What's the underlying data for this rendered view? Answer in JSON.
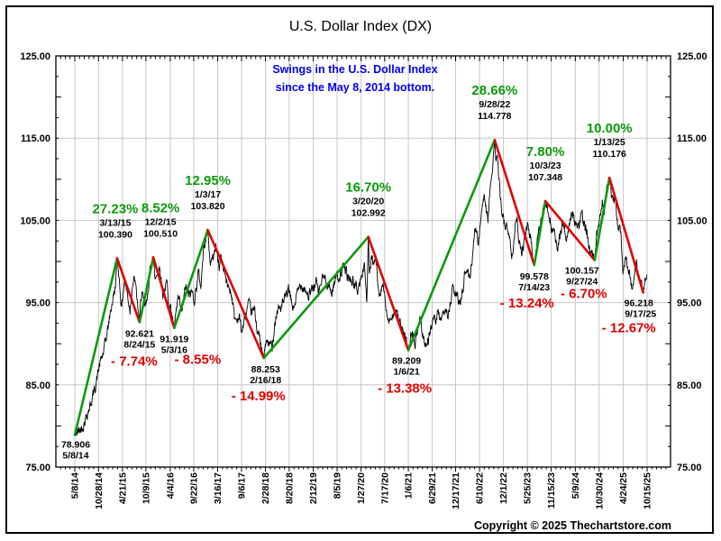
{
  "title": "U.S. Dollar Index (DX)",
  "annotation": {
    "lines": [
      "Swings in the U.S. Dollar Index",
      "since the May 8, 2014 bottom."
    ],
    "color": "#0000EE"
  },
  "copyright": "Copyright © 2025 Thechartstore.com",
  "colors": {
    "up_green": "#0A9A0A",
    "down_red": "#E00000",
    "annotation_blue": "#0000EE",
    "grid_gray": "#C6C6C6",
    "price_black": "#000000"
  },
  "y_axis": {
    "min": 75,
    "max": 125,
    "tick_step": 10,
    "labels": [
      "125.00",
      "115.00",
      "105.00",
      "95.00",
      "85.00",
      "75.00"
    ],
    "gridline_values": [
      115,
      105,
      95,
      85
    ]
  },
  "x_axis": {
    "labels": [
      "5/8/14",
      "10/28/14",
      "4/21/15",
      "10/9/15",
      "4/4/16",
      "9/22/16",
      "3/16/17",
      "9/6/17",
      "2/28/18",
      "8/20/18",
      "2/12/19",
      "8/5/19",
      "1/27/20",
      "7/17/20",
      "1/6/21",
      "6/29/21",
      "12/17/21",
      "6/10/22",
      "12/1/22",
      "5/25/23",
      "11/15/23",
      "5/9/24",
      "10/30/24",
      "4/24/25",
      "10/15/25"
    ],
    "label_days": [
      0,
      173,
      348,
      519,
      697,
      868,
      1043,
      1217,
      1392,
      1565,
      1741,
      1915,
      2090,
      2262,
      2435,
      2609,
      2780,
      2955,
      3129,
      3304,
      3478,
      3654,
      3828,
      4004,
      4178
    ]
  },
  "chart_data": {
    "type": "line",
    "series_name": "U.S. Dollar Index (DX)",
    "ylim": [
      75,
      125
    ],
    "grid": true,
    "swings": [
      {
        "day": 0,
        "date": "5/8/14",
        "value": 78.906,
        "value_str": "78.906",
        "type": "low",
        "pct": null
      },
      {
        "day": 309,
        "date": "3/13/15",
        "value": 100.39,
        "value_str": "100.390",
        "type": "high",
        "pct": "27.23%"
      },
      {
        "day": 473,
        "date": "8/24/15",
        "value": 92.621,
        "value_str": "92.621",
        "type": "low",
        "pct": "- 7.74%"
      },
      {
        "day": 573,
        "date": "12/2/15",
        "value": 100.51,
        "value_str": "100.510",
        "type": "high",
        "pct": "8.52%"
      },
      {
        "day": 726,
        "date": "5/3/16",
        "value": 91.919,
        "value_str": "91.919",
        "type": "low",
        "pct": "- 8.55%"
      },
      {
        "day": 971,
        "date": "1/3/17",
        "value": 103.82,
        "value_str": "103.820",
        "type": "high",
        "pct": "12.95%"
      },
      {
        "day": 1380,
        "date": "2/16/18",
        "value": 88.253,
        "value_str": "88.253",
        "type": "low",
        "pct": "- 14.99%"
      },
      {
        "day": 2143,
        "date": "3/20/20",
        "value": 102.992,
        "value_str": "102.992",
        "type": "high",
        "pct": "16.70%"
      },
      {
        "day": 2435,
        "date": "1/6/21",
        "value": 89.209,
        "value_str": "89.209",
        "type": "low",
        "pct": "- 13.38%"
      },
      {
        "day": 3065,
        "date": "9/28/22",
        "value": 114.778,
        "value_str": "114.778",
        "type": "high",
        "pct": "28.66%"
      },
      {
        "day": 3354,
        "date": "7/14/23",
        "value": 99.578,
        "value_str": "99.578",
        "type": "low",
        "pct": "- 13.24%"
      },
      {
        "day": 3435,
        "date": "10/3/23",
        "value": 107.348,
        "value_str": "107.348",
        "type": "high",
        "pct": "7.80%"
      },
      {
        "day": 3795,
        "date": "9/27/24",
        "value": 100.157,
        "value_str": "100.157",
        "type": "low",
        "pct": "- 6.70%"
      },
      {
        "day": 3903,
        "date": "1/13/25",
        "value": 110.176,
        "value_str": "110.176",
        "type": "high",
        "pct": "10.00%"
      },
      {
        "day": 4150,
        "date": "9/17/25",
        "value": 96.218,
        "value_str": "96.218",
        "type": "low",
        "pct": "- 12.67%"
      }
    ],
    "price_anchors": [
      [
        0,
        78.906
      ],
      [
        54,
        79.8
      ],
      [
        116,
        82.7
      ],
      [
        150,
        84.8
      ],
      [
        179,
        87.3
      ],
      [
        210,
        89.0
      ],
      [
        242,
        91.9
      ],
      [
        270,
        94.8
      ],
      [
        295,
        96.8
      ],
      [
        309,
        100.39
      ],
      [
        320,
        98.7
      ],
      [
        342,
        94.3
      ],
      [
        362,
        97.8
      ],
      [
        382,
        96.2
      ],
      [
        403,
        94.1
      ],
      [
        420,
        97.2
      ],
      [
        438,
        97.8
      ],
      [
        455,
        95.3
      ],
      [
        473,
        92.621
      ],
      [
        481,
        95.5
      ],
      [
        490,
        96.2
      ],
      [
        505,
        94.5
      ],
      [
        525,
        94.8
      ],
      [
        545,
        98.4
      ],
      [
        566,
        99.9
      ],
      [
        573,
        100.51
      ],
      [
        586,
        97.7
      ],
      [
        605,
        98.9
      ],
      [
        622,
        99.3
      ],
      [
        643,
        95.9
      ],
      [
        660,
        96.8
      ],
      [
        672,
        97.4
      ],
      [
        690,
        94.7
      ],
      [
        705,
        94.0
      ],
      [
        726,
        91.919
      ],
      [
        754,
        95.6
      ],
      [
        781,
        93.6
      ],
      [
        809,
        97.0
      ],
      [
        830,
        95.8
      ],
      [
        855,
        96.3
      ],
      [
        876,
        95.4
      ],
      [
        901,
        98.7
      ],
      [
        920,
        97.0
      ],
      [
        940,
        101.5
      ],
      [
        957,
        103.2
      ],
      [
        971,
        103.82
      ],
      [
        985,
        100.3
      ],
      [
        1001,
        99.9
      ],
      [
        1015,
        100.9
      ],
      [
        1029,
        102.1
      ],
      [
        1044,
        100.2
      ],
      [
        1054,
        99.4
      ],
      [
        1068,
        100.7
      ],
      [
        1090,
        99.0
      ],
      [
        1110,
        97.2
      ],
      [
        1130,
        96.8
      ],
      [
        1149,
        95.7
      ],
      [
        1165,
        93.2
      ],
      [
        1181,
        92.9
      ],
      [
        1200,
        93.4
      ],
      [
        1219,
        91.4
      ],
      [
        1240,
        93.0
      ],
      [
        1267,
        94.8
      ],
      [
        1287,
        93.9
      ],
      [
        1314,
        94.0
      ],
      [
        1330,
        92.0
      ],
      [
        1348,
        90.7
      ],
      [
        1362,
        89.2
      ],
      [
        1380,
        88.253
      ],
      [
        1393,
        90.2
      ],
      [
        1420,
        89.9
      ],
      [
        1440,
        89.7
      ],
      [
        1460,
        92.5
      ],
      [
        1482,
        94.2
      ],
      [
        1509,
        94.5
      ],
      [
        1530,
        95.2
      ],
      [
        1560,
        96.6
      ],
      [
        1580,
        95.1
      ],
      [
        1597,
        94.2
      ],
      [
        1620,
        95.9
      ],
      [
        1649,
        97.3
      ],
      [
        1680,
        96.8
      ],
      [
        1708,
        95.7
      ],
      [
        1730,
        96.5
      ],
      [
        1764,
        97.6
      ],
      [
        1777,
        96.0
      ],
      [
        1795,
        97.3
      ],
      [
        1813,
        98.1
      ],
      [
        1840,
        97.6
      ],
      [
        1874,
        96.1
      ],
      [
        1895,
        97.5
      ],
      [
        1911,
        98.4
      ],
      [
        1930,
        98.1
      ],
      [
        1950,
        98.9
      ],
      [
        1972,
        99.2
      ],
      [
        2000,
        97.9
      ],
      [
        2030,
        97.6
      ],
      [
        2063,
        96.5
      ],
      [
        2090,
        97.8
      ],
      [
        2114,
        99.8
      ],
      [
        2132,
        95.1
      ],
      [
        2143,
        102.992
      ],
      [
        2150,
        98.6
      ],
      [
        2165,
        100.1
      ],
      [
        2180,
        99.6
      ],
      [
        2198,
        100.3
      ],
      [
        2212,
        97.5
      ],
      [
        2225,
        96.3
      ],
      [
        2250,
        97.3
      ],
      [
        2276,
        93.5
      ],
      [
        2295,
        92.8
      ],
      [
        2308,
        92.2
      ],
      [
        2332,
        94.5
      ],
      [
        2350,
        93.6
      ],
      [
        2377,
        92.4
      ],
      [
        2400,
        91.0
      ],
      [
        2420,
        90.2
      ],
      [
        2435,
        89.209
      ],
      [
        2450,
        90.6
      ],
      [
        2465,
        91.4
      ],
      [
        2485,
        89.9
      ],
      [
        2505,
        91.8
      ],
      [
        2519,
        93.2
      ],
      [
        2540,
        91.1
      ],
      [
        2560,
        90.1
      ],
      [
        2574,
        89.7
      ],
      [
        2598,
        92.1
      ],
      [
        2620,
        92.6
      ],
      [
        2640,
        93.1
      ],
      [
        2661,
        93.5
      ],
      [
        2675,
        92.2
      ],
      [
        2702,
        94.3
      ],
      [
        2720,
        93.9
      ],
      [
        2730,
        93.5
      ],
      [
        2745,
        95.1
      ],
      [
        2757,
        96.6
      ],
      [
        2775,
        96.2
      ],
      [
        2790,
        95.7
      ],
      [
        2808,
        94.8
      ],
      [
        2830,
        96.5
      ],
      [
        2845,
        98.3
      ],
      [
        2860,
        99.1
      ],
      [
        2883,
        98.0
      ],
      [
        2900,
        100.1
      ],
      [
        2915,
        103.3
      ],
      [
        2927,
        104.7
      ],
      [
        2944,
        101.8
      ],
      [
        2960,
        104.2
      ],
      [
        2975,
        107.0
      ],
      [
        2989,
        108.5
      ],
      [
        3003,
        106.5
      ],
      [
        3016,
        105.1
      ],
      [
        3030,
        108.8
      ],
      [
        3045,
        110.2
      ],
      [
        3055,
        112.3
      ],
      [
        3065,
        114.778
      ],
      [
        3075,
        112.1
      ],
      [
        3085,
        113.0
      ],
      [
        3093,
        110.5
      ],
      [
        3110,
        107.2
      ],
      [
        3128,
        105.3
      ],
      [
        3142,
        104.0
      ],
      [
        3160,
        104.3
      ],
      [
        3177,
        102.2
      ],
      [
        3192,
        101.0
      ],
      [
        3210,
        103.5
      ],
      [
        3226,
        105.5
      ],
      [
        3245,
        102.6
      ],
      [
        3263,
        101.2
      ],
      [
        3280,
        102.4
      ],
      [
        3297,
        104.0
      ],
      [
        3310,
        104.2
      ],
      [
        3332,
        102.3
      ],
      [
        3345,
        100.3
      ],
      [
        3354,
        99.578
      ],
      [
        3370,
        101.8
      ],
      [
        3385,
        103.4
      ],
      [
        3396,
        104.1
      ],
      [
        3415,
        105.6
      ],
      [
        3427,
        106.6
      ],
      [
        3435,
        107.348
      ],
      [
        3450,
        106.2
      ],
      [
        3465,
        105.6
      ],
      [
        3480,
        104.1
      ],
      [
        3491,
        103.4
      ],
      [
        3505,
        103.8
      ],
      [
        3521,
        101.2
      ],
      [
        3540,
        102.9
      ],
      [
        3555,
        104.2
      ],
      [
        3569,
        104.8
      ],
      [
        3580,
        103.6
      ],
      [
        3592,
        102.9
      ],
      [
        3610,
        104.4
      ],
      [
        3631,
        106.2
      ],
      [
        3650,
        104.9
      ],
      [
        3665,
        104.6
      ],
      [
        3680,
        104.3
      ],
      [
        3692,
        105.3
      ],
      [
        3702,
        105.9
      ],
      [
        3720,
        104.3
      ],
      [
        3740,
        103.6
      ],
      [
        3760,
        101.0
      ],
      [
        3775,
        100.8
      ],
      [
        3795,
        100.157
      ],
      [
        3810,
        103.2
      ],
      [
        3823,
        104.2
      ],
      [
        3840,
        106.6
      ],
      [
        3851,
        107.4
      ],
      [
        3865,
        106.1
      ],
      [
        3880,
        108.3
      ],
      [
        3890,
        109.2
      ],
      [
        3903,
        110.176
      ],
      [
        3920,
        108.0
      ],
      [
        3935,
        107.5
      ],
      [
        3949,
        107.2
      ],
      [
        3967,
        103.6
      ],
      [
        3976,
        104.2
      ],
      [
        3990,
        102.8
      ],
      [
        4001,
        98.5
      ],
      [
        4012,
        99.8
      ],
      [
        4022,
        101.3
      ],
      [
        4035,
        99.4
      ],
      [
        4050,
        98.7
      ],
      [
        4060,
        97.3
      ],
      [
        4071,
        96.9
      ],
      [
        4080,
        98.0
      ],
      [
        4088,
        98.4
      ],
      [
        4101,
        99.6
      ],
      [
        4112,
        98.2
      ],
      [
        4124,
        97.8
      ],
      [
        4137,
        97.5
      ],
      [
        4150,
        96.218
      ],
      [
        4160,
        97.3
      ],
      [
        4170,
        98.1
      ],
      [
        4176,
        98.3
      ]
    ]
  }
}
